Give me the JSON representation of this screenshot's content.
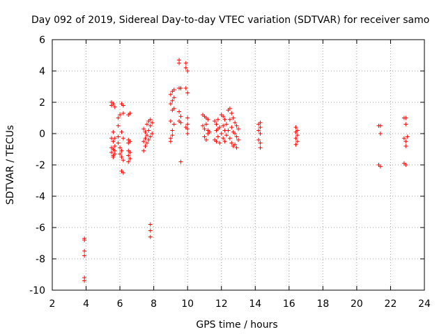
{
  "chart_data": {
    "type": "scatter",
    "title": "Day 092 of 2019, Sidereal Day-to-day VTEC variation (SDTVAR) for receiver samo",
    "xlabel": "GPS time / hours",
    "ylabel": "SDTVAR / TECUs",
    "xlim": [
      2,
      24
    ],
    "ylim": [
      -10,
      6
    ],
    "xticks": [
      2,
      4,
      6,
      8,
      10,
      12,
      14,
      16,
      18,
      20,
      22,
      24
    ],
    "yticks": [
      -10,
      -8,
      -6,
      -4,
      -2,
      0,
      2,
      4,
      6
    ],
    "grid": true,
    "marker": "plus",
    "color": "#ff0000",
    "series": [
      {
        "name": "SDTVAR",
        "x": [
          3.9,
          3.9,
          3.9,
          3.9,
          3.9,
          3.9,
          5.5,
          5.5,
          5.5,
          5.5,
          5.5,
          5.6,
          5.6,
          5.6,
          5.6,
          5.6,
          5.6,
          5.7,
          5.7,
          5.7,
          5.7,
          5.7,
          5.9,
          5.9,
          5.9,
          5.9,
          6.0,
          6.0,
          6.0,
          6.1,
          6.1,
          6.1,
          6.1,
          6.1,
          6.2,
          6.2,
          6.2,
          6.2,
          6.2,
          6.5,
          6.5,
          6.5,
          6.5,
          6.5,
          6.5,
          6.6,
          6.6,
          6.6,
          6.6,
          7.4,
          7.4,
          7.4,
          7.5,
          7.5,
          7.5,
          7.6,
          7.6,
          7.6,
          7.7,
          7.7,
          7.7,
          7.8,
          7.8,
          7.8,
          7.8,
          7.8,
          7.8,
          7.9,
          7.9,
          9.0,
          9.0,
          9.0,
          9.0,
          9.0,
          9.1,
          9.1,
          9.1,
          9.1,
          9.1,
          9.2,
          9.2,
          9.2,
          9.2,
          9.5,
          9.5,
          9.5,
          9.5,
          9.5,
          9.6,
          9.6,
          9.6,
          9.6,
          9.9,
          9.9,
          9.9,
          9.9,
          10.0,
          10.0,
          10.0,
          10.0,
          10.0,
          10.0,
          10.9,
          10.9,
          11.0,
          11.0,
          11.0,
          11.1,
          11.1,
          11.1,
          11.2,
          11.2,
          11.2,
          11.3,
          11.6,
          11.6,
          11.7,
          11.7,
          11.7,
          11.8,
          11.8,
          11.8,
          11.9,
          11.9,
          12.0,
          12.0,
          12.1,
          12.1,
          12.1,
          12.2,
          12.2,
          12.2,
          12.3,
          12.3,
          12.4,
          12.4,
          12.5,
          12.5,
          12.5,
          12.6,
          12.6,
          12.6,
          12.7,
          12.7,
          12.7,
          12.8,
          12.8,
          12.8,
          12.9,
          12.9,
          12.9,
          13.0,
          13.0,
          14.2,
          14.2,
          14.2,
          14.3,
          14.3,
          14.3,
          14.3,
          14.3,
          16.4,
          16.4,
          16.4,
          16.4,
          16.5,
          16.5,
          16.5,
          21.3,
          21.3,
          21.4,
          21.4,
          21.4,
          22.8,
          22.8,
          22.8,
          22.9,
          22.9,
          22.9,
          22.9,
          22.9,
          23.0
        ],
        "y": [
          -6.7,
          -7.5,
          -7.8,
          -9.2,
          -9.4,
          -6.8,
          2.0,
          1.8,
          -0.3,
          -0.9,
          -1.2,
          1.9,
          0.1,
          -0.5,
          -1.0,
          -1.4,
          -1.5,
          -0.3,
          -0.8,
          -1.1,
          -1.3,
          1.7,
          1.0,
          0.5,
          -0.2,
          -0.6,
          1.2,
          -0.9,
          -1.3,
          1.9,
          0.1,
          -1.1,
          -1.5,
          -2.4,
          1.8,
          1.3,
          -0.3,
          -2.5,
          -1.7,
          1.2,
          -0.4,
          -0.6,
          -1.1,
          -1.4,
          -1.8,
          1.3,
          -0.5,
          -1.2,
          -1.6,
          0.3,
          -0.5,
          -1.1,
          0.1,
          -0.3,
          -0.8,
          0.6,
          -0.1,
          -0.6,
          0.8,
          0.2,
          -0.4,
          0.9,
          0.5,
          -0.2,
          -5.8,
          -6.2,
          -6.6,
          0.7,
          0.0,
          2.5,
          1.9,
          0.8,
          -0.3,
          -0.5,
          2.7,
          2.1,
          1.5,
          0.2,
          -0.1,
          2.8,
          2.3,
          1.6,
          0.6,
          4.7,
          4.5,
          2.9,
          1.4,
          0.8,
          2.9,
          1.1,
          0.7,
          -1.8,
          4.5,
          4.2,
          2.9,
          0.4,
          4.0,
          2.6,
          1.0,
          0.6,
          0.3,
          0.0,
          1.2,
          0.5,
          1.1,
          0.3,
          -0.2,
          1.0,
          0.6,
          -0.4,
          0.9,
          0.2,
          0.0,
          0.1,
          0.8,
          -0.4,
          0.6,
          0.2,
          -0.5,
          0.9,
          0.3,
          -0.2,
          0.4,
          -0.6,
          1.2,
          0.0,
          1.1,
          0.5,
          -0.3,
          0.9,
          0.2,
          -0.5,
          0.6,
          -0.1,
          1.5,
          0.2,
          1.6,
          0.9,
          -0.3,
          1.3,
          0.4,
          -0.6,
          1.0,
          0.1,
          -0.8,
          0.7,
          0.0,
          -0.7,
          0.5,
          -0.2,
          -0.9,
          0.3,
          -0.4,
          0.6,
          0.2,
          -0.4,
          0.7,
          0.4,
          0.0,
          -0.6,
          -0.9,
          0.4,
          0.1,
          -0.3,
          -0.7,
          0.2,
          -0.1,
          -0.5,
          0.5,
          -2.0,
          0.5,
          0.0,
          -2.1,
          1.0,
          -0.3,
          -1.9,
          1.0,
          0.6,
          -0.5,
          -0.8,
          -2.0,
          -0.2
        ]
      }
    ]
  }
}
